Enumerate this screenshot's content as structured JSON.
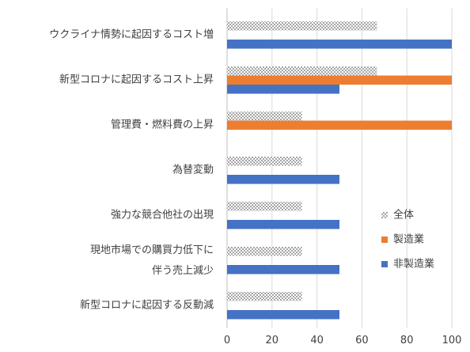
{
  "chart_data": {
    "type": "bar",
    "orientation": "horizontal",
    "categories": [
      "ウクライナ情勢に起因するコスト増",
      "新型コロナに起因するコスト上昇",
      "管理費・燃料費の上昇",
      "為替変動",
      "強力な競合他社の出現",
      "現地市場での購買力低下に\n伴う売上減少",
      "新型コロナに起因する反動減"
    ],
    "series": [
      {
        "name": "全体",
        "color": "#a5a5a5",
        "values": [
          66.7,
          66.7,
          33.3,
          33.3,
          33.3,
          33.3,
          33.3
        ]
      },
      {
        "name": "製造業",
        "color": "#ed7d31",
        "values": [
          0,
          100,
          100,
          0,
          0,
          0,
          0
        ]
      },
      {
        "name": "非製造業",
        "color": "#4472c4",
        "values": [
          100,
          50,
          0,
          50,
          50,
          50,
          50
        ]
      }
    ],
    "xlim": [
      0,
      100
    ],
    "xticks": [
      0,
      20,
      40,
      60,
      80,
      100
    ],
    "grid": true,
    "legend": "right"
  }
}
